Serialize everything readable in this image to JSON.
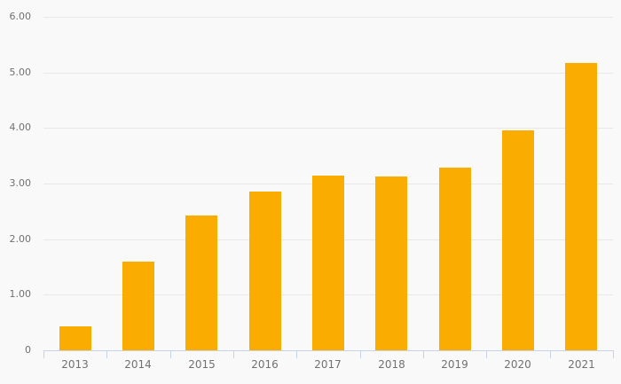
{
  "chart_data": {
    "type": "bar",
    "title": "",
    "xlabel": "",
    "ylabel": "",
    "categories": [
      "2013",
      "2014",
      "2015",
      "2016",
      "2017",
      "2018",
      "2019",
      "2020",
      "2021"
    ],
    "values": [
      0.43,
      1.6,
      2.42,
      2.85,
      3.15,
      3.12,
      3.28,
      3.96,
      5.17
    ],
    "ylim": [
      0,
      6
    ],
    "y_ticks": [
      {
        "value": 6,
        "label": "6.00"
      },
      {
        "value": 5,
        "label": "5.00"
      },
      {
        "value": 4,
        "label": "4.00"
      },
      {
        "value": 3,
        "label": "3.00"
      },
      {
        "value": 2,
        "label": "2.00"
      },
      {
        "value": 1,
        "label": "1.00"
      },
      {
        "value": 0,
        "label": "0"
      }
    ],
    "grid": true,
    "legend": "none",
    "colors": {
      "bar": "#FAAD00",
      "background": "#F9F9F9",
      "gridline": "#E8E8E8",
      "axis_line": "#C8D2E8",
      "tick_label": "#717171"
    }
  }
}
